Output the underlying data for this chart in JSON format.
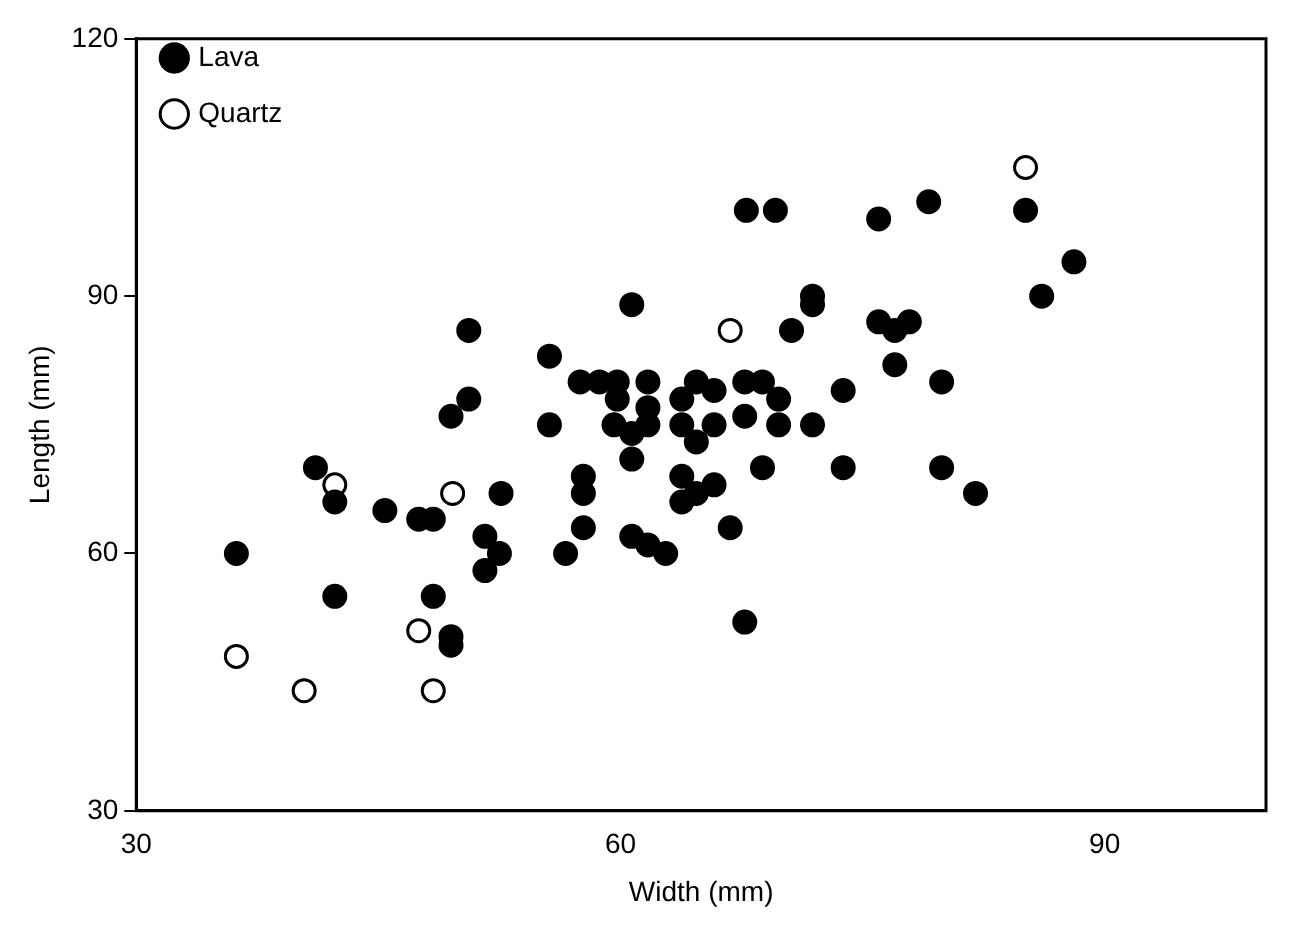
{
  "chart_data": {
    "type": "scatter",
    "xlabel": "Width (mm)",
    "ylabel": "Length (mm)",
    "xlim": [
      30,
      100
    ],
    "ylim": [
      30,
      120
    ],
    "xticks": [
      30,
      60,
      90
    ],
    "yticks": [
      30,
      60,
      90,
      120
    ],
    "grid": false,
    "legend": "top left",
    "marker": "circle",
    "series": [
      {
        "name": "Lava",
        "color": "#000000",
        "x": [
          36.2,
          42.3,
          48.4,
          49.5,
          49.5,
          45.4,
          47.5,
          48.4,
          51.6,
          52.5,
          51.6,
          42.3,
          52.6,
          41.1,
          50.6,
          55.6,
          70.6,
          57.5,
          58.7,
          59.8,
          61.7,
          64.7,
          65.8,
          67.7,
          68.8,
          69.8,
          50.6,
          49.5,
          55.6,
          59.8,
          61.7,
          63.8,
          59.6,
          60.7,
          61.7,
          63.8,
          65.8,
          67.7,
          69.8,
          64.7,
          60.7,
          68.8,
          57.7,
          57.7,
          63.8,
          65.8,
          64.7,
          63.8,
          57.7,
          56.6,
          60.7,
          61.7,
          62.8,
          66.8,
          67.7,
          67.8,
          69.6,
          60.7,
          76,
          79.1,
          85.1,
          88.1,
          86.1,
          71.9,
          71.9,
          76,
          77,
          77.9,
          77,
          79.9,
          73.8,
          71.9,
          73.8,
          79.9,
          82
        ],
        "values": [
          60,
          55,
          55,
          50.3,
          49.3,
          65,
          64,
          64,
          62,
          60,
          58,
          66,
          67,
          70,
          78,
          83,
          86,
          80,
          80,
          80,
          80,
          80,
          79,
          80,
          80,
          78,
          86,
          76,
          75,
          78,
          77,
          78,
          75,
          74,
          75,
          75,
          75,
          76,
          75,
          73,
          71,
          70,
          69,
          67,
          69,
          68,
          67,
          66,
          63,
          60,
          62,
          61,
          60,
          63,
          52,
          100,
          100,
          89,
          99,
          101,
          100,
          94,
          90,
          90,
          89,
          87,
          86,
          87,
          82,
          80,
          79,
          75,
          70,
          70,
          67
        ]
      },
      {
        "name": "Quartz",
        "color": "#000000",
        "x": [
          36.2,
          40.4,
          48.4,
          47.5,
          49.6,
          42.3,
          66.8,
          85.1
        ],
        "values": [
          48,
          44,
          44,
          51,
          67,
          68,
          86,
          105
        ]
      }
    ]
  }
}
